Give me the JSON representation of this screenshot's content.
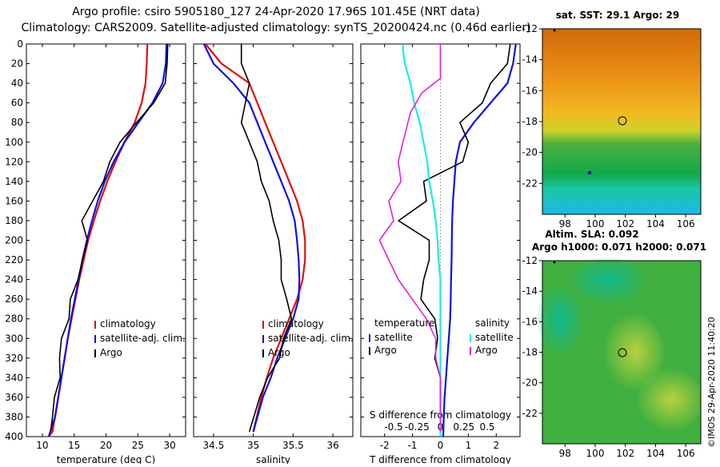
{
  "title_line1": "Argo profile: csiro 5905180_127 24-Apr-2020 17.96S 101.45E (NRT data)",
  "title_line2": "Climatology: CARS2009. Satellite-adjusted climatology: synTS_20200424.nc (0.46d earlier)",
  "credit": "©IMOS 29-Apr-2020 11:40:20",
  "colors": {
    "climatology": "#e01010",
    "satellite": "#1010e0",
    "argo": "#000000",
    "satellite_s": "#20e8e8",
    "argo_s": "#e020e0"
  },
  "chart_data": [
    {
      "type": "line",
      "name": "temperature",
      "xlabel": "temperature (deg C)",
      "ylabel": "",
      "xlim": [
        7.5,
        32.5
      ],
      "ylim": [
        400,
        0
      ],
      "xticks": [
        10,
        15,
        20,
        25,
        30
      ],
      "yticks": [
        0,
        20,
        40,
        60,
        80,
        100,
        120,
        140,
        160,
        180,
        200,
        220,
        240,
        260,
        280,
        300,
        320,
        340,
        360,
        380,
        400
      ],
      "legend": [
        "climatology",
        "satellite-adj. clim.",
        "Argo"
      ],
      "series": [
        {
          "name": "climatology",
          "color": "#e01010",
          "x": [
            26.5,
            26.4,
            26.2,
            25.6,
            24.5,
            22.9,
            21.5,
            20.2,
            19.1,
            18.1,
            17.2,
            16.5,
            15.8,
            15.2,
            14.6,
            14.0,
            13.5,
            13.0,
            12.5,
            12.0,
            11.6,
            11.0
          ],
          "y": [
            0,
            20,
            40,
            60,
            80,
            100,
            120,
            140,
            160,
            180,
            200,
            220,
            240,
            260,
            280,
            300,
            320,
            340,
            360,
            380,
            395,
            400
          ]
        },
        {
          "name": "satellite-adj. clim.",
          "color": "#1010e0",
          "x": [
            29.5,
            29.4,
            28.9,
            27.3,
            25.1,
            22.9,
            21.2,
            19.8,
            18.7,
            17.8,
            17.0,
            16.3,
            15.7,
            15.1,
            14.5,
            14.0,
            13.5,
            13.0,
            12.5,
            12.0,
            11.0
          ],
          "y": [
            0,
            20,
            40,
            60,
            80,
            100,
            120,
            140,
            160,
            180,
            200,
            220,
            240,
            260,
            280,
            300,
            320,
            340,
            360,
            380,
            400
          ]
        },
        {
          "name": "Argo",
          "color": "#000000",
          "x": [
            29.7,
            29.6,
            29.3,
            27.5,
            24.8,
            22.2,
            20.6,
            19.6,
            17.9,
            16.2,
            17.1,
            16.3,
            15.6,
            14.4,
            14.2,
            13.0,
            12.7,
            12.8,
            11.9,
            11.6,
            11.3
          ],
          "y": [
            0,
            20,
            40,
            60,
            80,
            100,
            120,
            140,
            160,
            180,
            200,
            220,
            240,
            260,
            280,
            300,
            320,
            340,
            360,
            380,
            395
          ]
        }
      ]
    },
    {
      "type": "line",
      "name": "salinity",
      "xlabel": "salinity",
      "ylabel": "",
      "xlim": [
        34.25,
        36.25
      ],
      "ylim": [
        400,
        0
      ],
      "xticks": [
        34.5,
        35,
        35.5,
        36
      ],
      "legend": [
        "climatology",
        "satellite-adj. clim.",
        "Argo"
      ],
      "series": [
        {
          "name": "climatology",
          "color": "#e01010",
          "x": [
            34.4,
            34.6,
            34.95,
            35.05,
            35.15,
            35.25,
            35.35,
            35.45,
            35.55,
            35.62,
            35.65,
            35.65,
            35.62,
            35.55,
            35.45,
            35.35,
            35.25,
            35.17,
            35.1,
            35.0
          ],
          "y": [
            0,
            20,
            40,
            60,
            80,
            100,
            120,
            140,
            160,
            180,
            200,
            220,
            240,
            260,
            280,
            300,
            320,
            340,
            360,
            395
          ]
        },
        {
          "name": "satellite-adj. clim.",
          "color": "#1010e0",
          "x": [
            34.38,
            34.5,
            34.75,
            34.95,
            35.05,
            35.15,
            35.25,
            35.35,
            35.45,
            35.52,
            35.55,
            35.57,
            35.58,
            35.57,
            35.5,
            35.4,
            35.3,
            35.22,
            35.12,
            35.0
          ],
          "y": [
            0,
            20,
            40,
            60,
            80,
            100,
            120,
            140,
            160,
            180,
            200,
            220,
            240,
            260,
            280,
            300,
            320,
            340,
            360,
            395
          ]
        },
        {
          "name": "Argo",
          "color": "#000000",
          "x": [
            34.85,
            34.85,
            34.95,
            34.9,
            34.85,
            34.95,
            35.05,
            35.1,
            35.2,
            35.25,
            35.32,
            35.35,
            35.35,
            35.42,
            35.48,
            35.38,
            35.33,
            35.18,
            35.08,
            34.95
          ],
          "y": [
            0,
            20,
            40,
            60,
            80,
            100,
            120,
            140,
            160,
            180,
            200,
            220,
            240,
            260,
            280,
            300,
            320,
            340,
            360,
            395
          ]
        }
      ]
    },
    {
      "type": "line",
      "name": "differences",
      "xlabel": "T difference from climatology",
      "xlabel_top": "S difference from climatology",
      "xlim": [
        -2.85,
        2.85
      ],
      "xlim_top": [
        -0.85,
        0.85
      ],
      "ylim": [
        400,
        0
      ],
      "xticks": [
        -2,
        -1,
        0,
        1,
        2
      ],
      "xticks_top": [
        -0.5,
        -0.25,
        0,
        0.25,
        0.5
      ],
      "legend": {
        "temperature": [
          "satellite",
          "Argo"
        ],
        "salinity": [
          "satellite",
          "Argo"
        ]
      },
      "series": [
        {
          "name": "temperature satellite",
          "color": "#1010e0",
          "axis": "T",
          "x": [
            2.7,
            2.6,
            2.4,
            1.8,
            1.2,
            0.7,
            0.55,
            0.5,
            0.45,
            0.42,
            0.41,
            0.4,
            0.38,
            0.37,
            0.35,
            0.3,
            0.25,
            0.2,
            0.15,
            0.12,
            0.1
          ],
          "y": [
            0,
            20,
            40,
            60,
            80,
            100,
            120,
            140,
            160,
            180,
            200,
            220,
            240,
            260,
            280,
            300,
            320,
            340,
            360,
            380,
            400
          ]
        },
        {
          "name": "temperature Argo",
          "color": "#000000",
          "axis": "T",
          "x": [
            2.5,
            2.4,
            1.8,
            1.5,
            0.7,
            1.0,
            0.8,
            -0.6,
            -0.5,
            -1.5,
            -0.4,
            -0.4,
            -0.6,
            -0.7,
            -0.2,
            -0.1,
            -0.2,
            0.0,
            0.0,
            0.0,
            0.0
          ],
          "y": [
            0,
            20,
            40,
            60,
            80,
            100,
            120,
            140,
            160,
            180,
            200,
            220,
            240,
            260,
            280,
            300,
            320,
            340,
            360,
            380,
            395
          ]
        },
        {
          "name": "salinity satellite",
          "color": "#20e8e8",
          "axis": "S",
          "x": [
            -0.4,
            -0.4,
            -0.38,
            -0.32,
            -0.28,
            -0.22,
            -0.18,
            -0.14,
            -0.12,
            -0.08,
            -0.05,
            -0.03,
            -0.02,
            0.0,
            0.0,
            0.0,
            0.0,
            0.0,
            0.0,
            0.0
          ],
          "y": [
            0,
            5,
            20,
            40,
            60,
            80,
            100,
            120,
            140,
            160,
            180,
            200,
            220,
            240,
            260,
            280,
            300,
            320,
            340,
            400
          ]
        },
        {
          "name": "salinity Argo",
          "color": "#e020e0",
          "axis": "S",
          "x": [
            0.0,
            0.0,
            0.0,
            -0.2,
            -0.32,
            -0.4,
            -0.45,
            -0.42,
            -0.55,
            -0.5,
            -0.65,
            -0.55,
            -0.45,
            -0.3,
            -0.15,
            -0.05,
            -0.05,
            0.0,
            0.0
          ],
          "y": [
            0,
            20,
            35,
            50,
            70,
            100,
            120,
            140,
            160,
            180,
            200,
            220,
            240,
            260,
            280,
            300,
            320,
            340,
            395
          ]
        }
      ]
    },
    {
      "type": "heatmap",
      "name": "sst_map",
      "title": "sat. SST: 29.1 Argo: 29",
      "xticks": [
        98,
        100,
        102,
        104,
        106
      ],
      "yticks": [
        -12,
        -14,
        -16,
        -18,
        -20,
        -22
      ],
      "xlim": [
        96.5,
        107
      ],
      "ylim": [
        -24,
        -12
      ],
      "marker": {
        "lon": 101.45,
        "lat": -17.96
      }
    },
    {
      "type": "heatmap",
      "name": "sla_map",
      "title": "Altim. SLA: 0.092",
      "subtitle": "Argo h1000: 0.071 h2000: 0.071",
      "xticks": [
        98,
        100,
        102,
        104,
        106
      ],
      "yticks": [
        -12,
        -14,
        -16,
        -18,
        -20,
        -22
      ],
      "xlim": [
        96.5,
        107
      ],
      "ylim": [
        -24,
        -12
      ],
      "marker": {
        "lon": 101.45,
        "lat": -17.96
      }
    }
  ]
}
